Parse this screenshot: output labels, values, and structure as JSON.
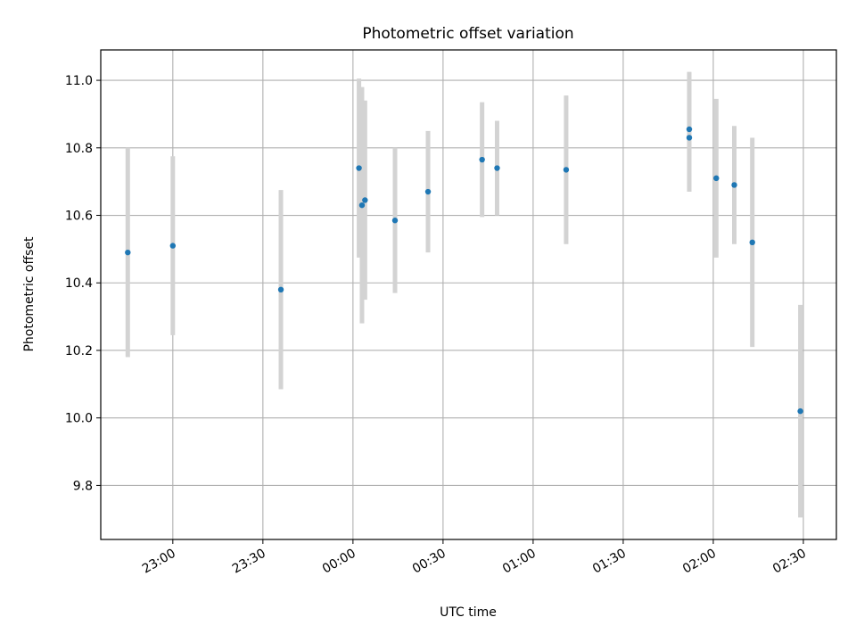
{
  "chart_data": {
    "type": "scatter",
    "title": "Photometric offset variation",
    "xlabel": "UTC time",
    "ylabel": "Photometric offset",
    "x_ticks": [
      "23:00",
      "23:30",
      "00:00",
      "00:30",
      "01:00",
      "01:30",
      "02:00",
      "02:30"
    ],
    "y_ticks": [
      "9.8",
      "10.0",
      "10.2",
      "10.4",
      "10.6",
      "10.8",
      "11.0"
    ],
    "xlim": [
      "22:36",
      "02:41"
    ],
    "ylim": [
      9.64,
      11.09
    ],
    "grid": true,
    "legend": "none",
    "colors": {
      "points": "#1f77b4",
      "error_bars": "#d3d3d3",
      "grid": "#b0b0b0"
    },
    "points": [
      {
        "x": "22:45",
        "y": 10.49,
        "err": 0.31
      },
      {
        "x": "23:00",
        "y": 10.51,
        "err": 0.265
      },
      {
        "x": "23:36",
        "y": 10.38,
        "err": 0.295
      },
      {
        "x": "00:02",
        "y": 10.74,
        "err": 0.265
      },
      {
        "x": "00:03",
        "y": 10.63,
        "err": 0.35
      },
      {
        "x": "00:04",
        "y": 10.645,
        "err": 0.295
      },
      {
        "x": "00:14",
        "y": 10.585,
        "err": 0.215
      },
      {
        "x": "00:25",
        "y": 10.67,
        "err": 0.18
      },
      {
        "x": "00:43",
        "y": 10.765,
        "err": 0.17
      },
      {
        "x": "00:48",
        "y": 10.74,
        "err": 0.14
      },
      {
        "x": "01:11",
        "y": 10.735,
        "err": 0.22
      },
      {
        "x": "01:52",
        "y": 10.855,
        "err": 0.17
      },
      {
        "x": "01:52",
        "y": 10.83,
        "err": 0.16
      },
      {
        "x": "02:01",
        "y": 10.71,
        "err": 0.235
      },
      {
        "x": "02:07",
        "y": 10.69,
        "err": 0.175
      },
      {
        "x": "02:13",
        "y": 10.52,
        "err": 0.31
      },
      {
        "x": "02:29",
        "y": 10.02,
        "err": 0.315
      }
    ]
  }
}
